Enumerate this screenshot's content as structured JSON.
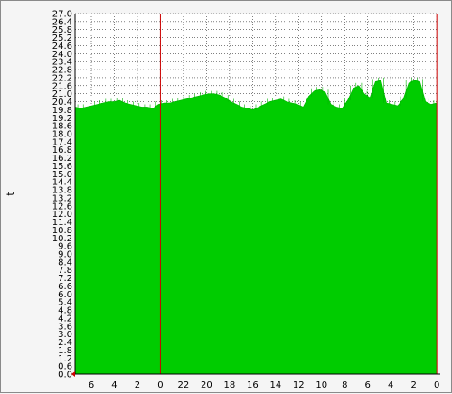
{
  "chart_data": {
    "type": "area",
    "title": "",
    "xlabel": "",
    "ylabel": "t",
    "ylim": [
      0.0,
      27.0
    ],
    "grid": true,
    "colors": {
      "fill": "#00cc00",
      "line": "#00b400",
      "grid": "#000000",
      "plot_background": "#ffffff",
      "vrule": "#cc0000",
      "axis": "#000000"
    },
    "y_ticks": [
      "0.0",
      "0.6",
      "1.2",
      "1.8",
      "2.4",
      "3.0",
      "3.6",
      "4.2",
      "4.8",
      "5.4",
      "6.0",
      "6.6",
      "7.2",
      "7.8",
      "8.4",
      "9.0",
      "9.6",
      "10.2",
      "10.8",
      "11.4",
      "12.0",
      "12.6",
      "13.2",
      "13.8",
      "14.4",
      "15.0",
      "15.6",
      "16.2",
      "16.8",
      "17.4",
      "18.0",
      "18.6",
      "19.2",
      "19.8",
      "20.4",
      "21.0",
      "21.6",
      "22.2",
      "22.8",
      "23.4",
      "24.0",
      "24.6",
      "25.2",
      "25.8",
      "26.4",
      "27.0"
    ],
    "x_ticks": [
      "6",
      "4",
      "2",
      "0",
      "22",
      "20",
      "18",
      "16",
      "14",
      "12",
      "10",
      "8",
      "6",
      "4",
      "2",
      "0"
    ],
    "vertical_markers_at_tick_index": [
      3,
      15
    ],
    "series": [
      {
        "values": [
          20.0,
          19.9,
          20.0,
          20.1,
          20.2,
          20.3,
          20.4,
          20.4,
          20.5,
          20.3,
          20.2,
          20.1,
          20.0,
          20.0,
          19.9,
          20.2,
          20.3,
          20.3,
          20.4,
          20.5,
          20.6,
          20.7,
          20.8,
          20.9,
          21.0,
          21.0,
          20.9,
          20.7,
          20.4,
          20.2,
          20.0,
          19.9,
          19.8,
          20.0,
          20.2,
          20.4,
          20.5,
          20.6,
          20.4,
          20.3,
          20.2,
          20.0,
          20.8,
          21.2,
          21.3,
          21.1,
          20.2,
          20.0,
          19.9,
          20.5,
          21.4,
          21.6,
          21.0,
          20.7,
          21.9,
          22.0,
          20.3,
          20.2,
          20.1,
          20.6,
          21.8,
          22.0,
          21.9,
          20.4,
          20.2,
          20.3
        ]
      }
    ]
  }
}
